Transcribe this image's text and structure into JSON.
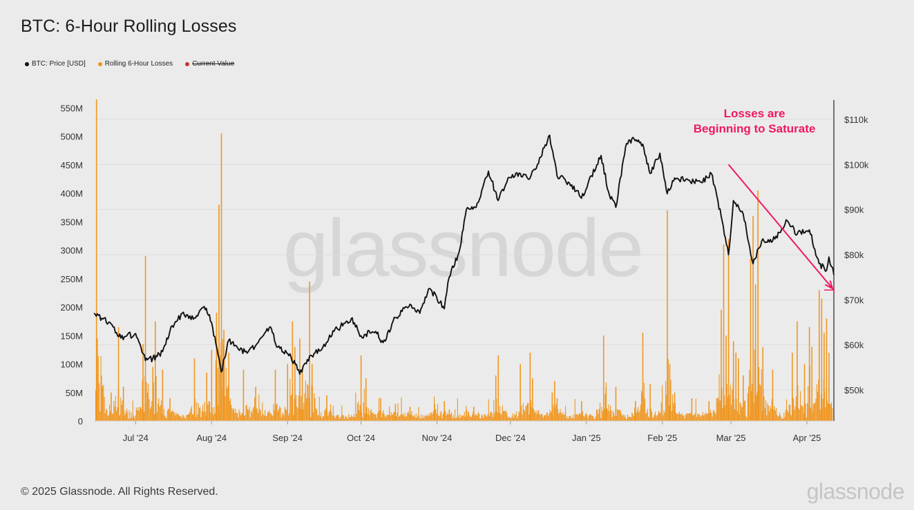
{
  "title": "BTC: 6-Hour Rolling Losses",
  "legend": [
    {
      "label": "BTC: Price [USD]",
      "color": "#111111",
      "struck": false
    },
    {
      "label": "Rolling 6-Hour Losses",
      "color": "#f0961e",
      "struck": false
    },
    {
      "label": "Current Value",
      "color": "#c0392b",
      "struck": true
    }
  ],
  "watermark": "glassnode",
  "footer": {
    "copyright": "© 2025 Glassnode. All Rights Reserved.",
    "logo": "glassnode"
  },
  "chart_data": {
    "type": "bar+line",
    "x_axis": {
      "type": "date",
      "range": [
        "2024-06-14",
        "2025-04-12"
      ],
      "tick_labels": [
        "Jul '24",
        "Aug '24",
        "Sep '24",
        "Oct '24",
        "Nov '24",
        "Dec '24",
        "Jan '25",
        "Feb '25",
        "Mar '25",
        "Apr '25"
      ],
      "tick_dates": [
        "2024-07-01",
        "2024-08-01",
        "2024-09-01",
        "2024-10-01",
        "2024-11-01",
        "2024-12-01",
        "2025-01-01",
        "2025-02-01",
        "2025-03-01",
        "2025-04-01"
      ]
    },
    "y_left": {
      "label": "",
      "range": [
        0,
        560000000
      ],
      "tick_values": [
        0,
        50000000,
        100000000,
        150000000,
        200000000,
        250000000,
        300000000,
        350000000,
        400000000,
        450000000,
        500000000,
        550000000
      ],
      "tick_labels": [
        "0",
        "50M",
        "100M",
        "150M",
        "200M",
        "250M",
        "300M",
        "350M",
        "400M",
        "450M",
        "500M",
        "550M"
      ]
    },
    "y_right": {
      "label": "",
      "range": [
        43000,
        114000
      ],
      "tick_values": [
        50000,
        60000,
        70000,
        80000,
        90000,
        100000,
        110000
      ],
      "tick_labels": [
        "$50k",
        "$60k",
        "$70k",
        "$80k",
        "$90k",
        "$100k",
        "$110k"
      ]
    },
    "grid": "horizontal",
    "series": [
      {
        "name": "BTC: Price [USD]",
        "type": "line",
        "axis": "right",
        "color": "#111111",
        "points": [
          [
            "2024-06-14",
            67000
          ],
          [
            "2024-06-20",
            65000
          ],
          [
            "2024-06-25",
            61500
          ],
          [
            "2024-07-01",
            62500
          ],
          [
            "2024-07-05",
            56500
          ],
          [
            "2024-07-08",
            57000
          ],
          [
            "2024-07-12",
            58500
          ],
          [
            "2024-07-15",
            63000
          ],
          [
            "2024-07-20",
            67000
          ],
          [
            "2024-07-25",
            66000
          ],
          [
            "2024-07-29",
            68500
          ],
          [
            "2024-08-01",
            65000
          ],
          [
            "2024-08-05",
            54000
          ],
          [
            "2024-08-08",
            61000
          ],
          [
            "2024-08-12",
            59000
          ],
          [
            "2024-08-16",
            58500
          ],
          [
            "2024-08-20",
            60500
          ],
          [
            "2024-08-25",
            64000
          ],
          [
            "2024-08-28",
            59500
          ],
          [
            "2024-09-02",
            58000
          ],
          [
            "2024-09-06",
            53500
          ],
          [
            "2024-09-10",
            57500
          ],
          [
            "2024-09-15",
            59000
          ],
          [
            "2024-09-20",
            63000
          ],
          [
            "2024-09-27",
            65800
          ],
          [
            "2024-10-01",
            62000
          ],
          [
            "2024-10-07",
            63000
          ],
          [
            "2024-10-10",
            60500
          ],
          [
            "2024-10-15",
            66000
          ],
          [
            "2024-10-21",
            69000
          ],
          [
            "2024-10-25",
            67000
          ],
          [
            "2024-10-29",
            72500
          ],
          [
            "2024-11-04",
            68000
          ],
          [
            "2024-11-06",
            75000
          ],
          [
            "2024-11-10",
            80500
          ],
          [
            "2024-11-13",
            90000
          ],
          [
            "2024-11-17",
            90500
          ],
          [
            "2024-11-22",
            98500
          ],
          [
            "2024-11-26",
            92000
          ],
          [
            "2024-11-30",
            97000
          ],
          [
            "2024-12-05",
            98000
          ],
          [
            "2024-12-09",
            97000
          ],
          [
            "2024-12-12",
            100000
          ],
          [
            "2024-12-17",
            106500
          ],
          [
            "2024-12-20",
            97500
          ],
          [
            "2024-12-26",
            95500
          ],
          [
            "2024-12-30",
            92500
          ],
          [
            "2025-01-03",
            97500
          ],
          [
            "2025-01-07",
            102000
          ],
          [
            "2025-01-10",
            94000
          ],
          [
            "2025-01-13",
            90500
          ],
          [
            "2025-01-17",
            104000
          ],
          [
            "2025-01-20",
            106000
          ],
          [
            "2025-01-24",
            104500
          ],
          [
            "2025-01-27",
            98000
          ],
          [
            "2025-01-31",
            102500
          ],
          [
            "2025-02-03",
            93500
          ],
          [
            "2025-02-06",
            97000
          ],
          [
            "2025-02-12",
            96500
          ],
          [
            "2025-02-17",
            96000
          ],
          [
            "2025-02-21",
            98000
          ],
          [
            "2025-02-25",
            88500
          ],
          [
            "2025-02-28",
            80000
          ],
          [
            "2025-03-02",
            92000
          ],
          [
            "2025-03-06",
            89000
          ],
          [
            "2025-03-10",
            78000
          ],
          [
            "2025-03-14",
            83500
          ],
          [
            "2025-03-18",
            83000
          ],
          [
            "2025-03-24",
            87500
          ],
          [
            "2025-03-28",
            84500
          ],
          [
            "2025-04-02",
            85500
          ],
          [
            "2025-04-06",
            78000
          ],
          [
            "2025-04-09",
            76500
          ],
          [
            "2025-04-10",
            79500
          ],
          [
            "2025-04-12",
            75500
          ]
        ]
      },
      {
        "name": "Rolling 6-Hour Losses",
        "type": "bar",
        "axis": "left",
        "color": "#f0961e",
        "points": [
          [
            "2024-06-15",
            565000000
          ],
          [
            "2024-06-17",
            80000000
          ],
          [
            "2024-06-21",
            50000000
          ],
          [
            "2024-06-24",
            165000000
          ],
          [
            "2024-06-26",
            60000000
          ],
          [
            "2024-07-04",
            135000000
          ],
          [
            "2024-07-05",
            290000000
          ],
          [
            "2024-07-08",
            95000000
          ],
          [
            "2024-07-09",
            175000000
          ],
          [
            "2024-07-12",
            90000000
          ],
          [
            "2024-07-15",
            40000000
          ],
          [
            "2024-07-25",
            110000000
          ],
          [
            "2024-07-30",
            85000000
          ],
          [
            "2024-08-01",
            125000000
          ],
          [
            "2024-08-03",
            190000000
          ],
          [
            "2024-08-04",
            380000000
          ],
          [
            "2024-08-05",
            505000000
          ],
          [
            "2024-08-06",
            160000000
          ],
          [
            "2024-08-08",
            120000000
          ],
          [
            "2024-08-14",
            90000000
          ],
          [
            "2024-08-19",
            60000000
          ],
          [
            "2024-08-27",
            90000000
          ],
          [
            "2024-09-01",
            100000000
          ],
          [
            "2024-09-03",
            175000000
          ],
          [
            "2024-09-04",
            130000000
          ],
          [
            "2024-09-06",
            145000000
          ],
          [
            "2024-09-07",
            90000000
          ],
          [
            "2024-09-10",
            245000000
          ],
          [
            "2024-09-11",
            100000000
          ],
          [
            "2024-09-17",
            45000000
          ],
          [
            "2024-10-01",
            115000000
          ],
          [
            "2024-10-03",
            75000000
          ],
          [
            "2024-10-09",
            40000000
          ],
          [
            "2024-10-15",
            30000000
          ],
          [
            "2024-10-21",
            25000000
          ],
          [
            "2024-10-31",
            30000000
          ],
          [
            "2024-11-04",
            35000000
          ],
          [
            "2024-11-06",
            20000000
          ],
          [
            "2024-11-13",
            20000000
          ],
          [
            "2024-11-16",
            25000000
          ],
          [
            "2024-11-25",
            80000000
          ],
          [
            "2024-11-26",
            115000000
          ],
          [
            "2024-12-05",
            100000000
          ],
          [
            "2024-12-09",
            120000000
          ],
          [
            "2024-12-10",
            75000000
          ],
          [
            "2024-12-18",
            50000000
          ],
          [
            "2024-12-19",
            70000000
          ],
          [
            "2024-12-20",
            40000000
          ],
          [
            "2024-12-30",
            35000000
          ],
          [
            "2025-01-08",
            150000000
          ],
          [
            "2025-01-09",
            60000000
          ],
          [
            "2025-01-13",
            60000000
          ],
          [
            "2025-01-21",
            35000000
          ],
          [
            "2025-01-24",
            155000000
          ],
          [
            "2025-01-27",
            65000000
          ],
          [
            "2025-02-03",
            370000000
          ],
          [
            "2025-02-04",
            100000000
          ],
          [
            "2025-02-06",
            50000000
          ],
          [
            "2025-02-13",
            40000000
          ],
          [
            "2025-02-20",
            35000000
          ],
          [
            "2025-02-24",
            40000000
          ],
          [
            "2025-02-25",
            195000000
          ],
          [
            "2025-02-26",
            310000000
          ],
          [
            "2025-02-27",
            150000000
          ],
          [
            "2025-02-28",
            320000000
          ],
          [
            "2025-03-02",
            140000000
          ],
          [
            "2025-03-03",
            120000000
          ],
          [
            "2025-03-04",
            110000000
          ],
          [
            "2025-03-06",
            80000000
          ],
          [
            "2025-03-09",
            285000000
          ],
          [
            "2025-03-10",
            360000000
          ],
          [
            "2025-03-11",
            240000000
          ],
          [
            "2025-03-12",
            405000000
          ],
          [
            "2025-03-14",
            130000000
          ],
          [
            "2025-03-18",
            90000000
          ],
          [
            "2025-03-26",
            120000000
          ],
          [
            "2025-03-28",
            175000000
          ],
          [
            "2025-03-31",
            100000000
          ],
          [
            "2025-04-02",
            165000000
          ],
          [
            "2025-04-03",
            130000000
          ],
          [
            "2025-04-06",
            230000000
          ],
          [
            "2025-04-07",
            215000000
          ],
          [
            "2025-04-08",
            155000000
          ],
          [
            "2025-04-09",
            180000000
          ],
          [
            "2025-04-10",
            120000000
          ]
        ]
      }
    ],
    "current_value": {
      "date": "2025-04-12",
      "value": 230000000,
      "color": "#f0185e"
    },
    "annotations": [
      {
        "text": [
          "Losses are",
          "Beginning to Saturate"
        ],
        "color": "#f0185e"
      }
    ],
    "trend_arrow": {
      "from": {
        "date": "2025-02-28",
        "price": 100000
      },
      "to": {
        "date": "2025-04-12",
        "price": 72500
      },
      "color": "#f0185e"
    }
  }
}
